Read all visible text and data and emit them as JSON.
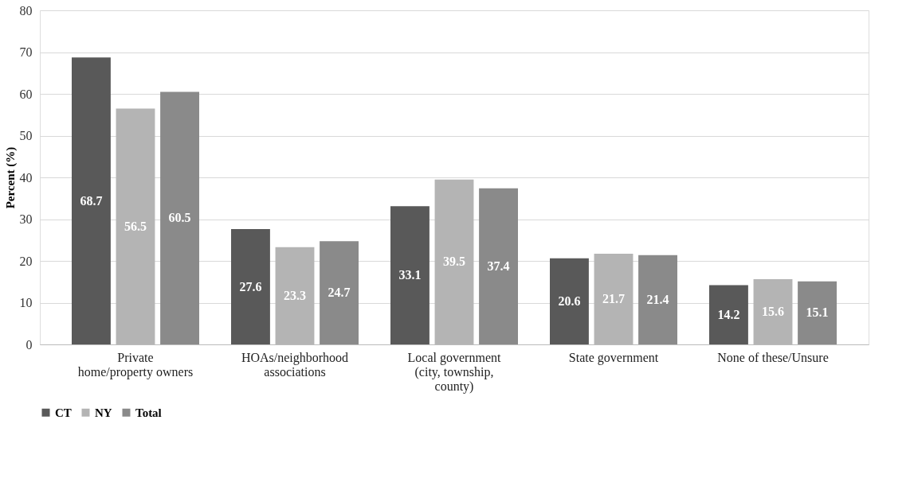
{
  "chart_data": {
    "type": "bar",
    "ylabel": "Percent (%)",
    "categories": [
      "Private home/property owners",
      "HOAs/neighborhood associations",
      "Local government (city, township, county)",
      "State government",
      "None of these/Unsure"
    ],
    "series": [
      {
        "name": "CT",
        "color": "#595959",
        "values": [
          68.7,
          27.6,
          33.1,
          20.6,
          14.2
        ]
      },
      {
        "name": "NY",
        "color": "#b4b4b4",
        "values": [
          56.5,
          23.3,
          39.5,
          21.7,
          15.6
        ]
      },
      {
        "name": "Total",
        "color": "#8a8a8a",
        "values": [
          60.5,
          24.7,
          37.4,
          21.4,
          15.1
        ]
      }
    ],
    "ylim": [
      0,
      80
    ],
    "yticks": [
      0,
      10,
      20,
      30,
      40,
      50,
      60,
      70,
      80
    ],
    "grid": "y",
    "legend": "bottom",
    "data_labels": true
  }
}
